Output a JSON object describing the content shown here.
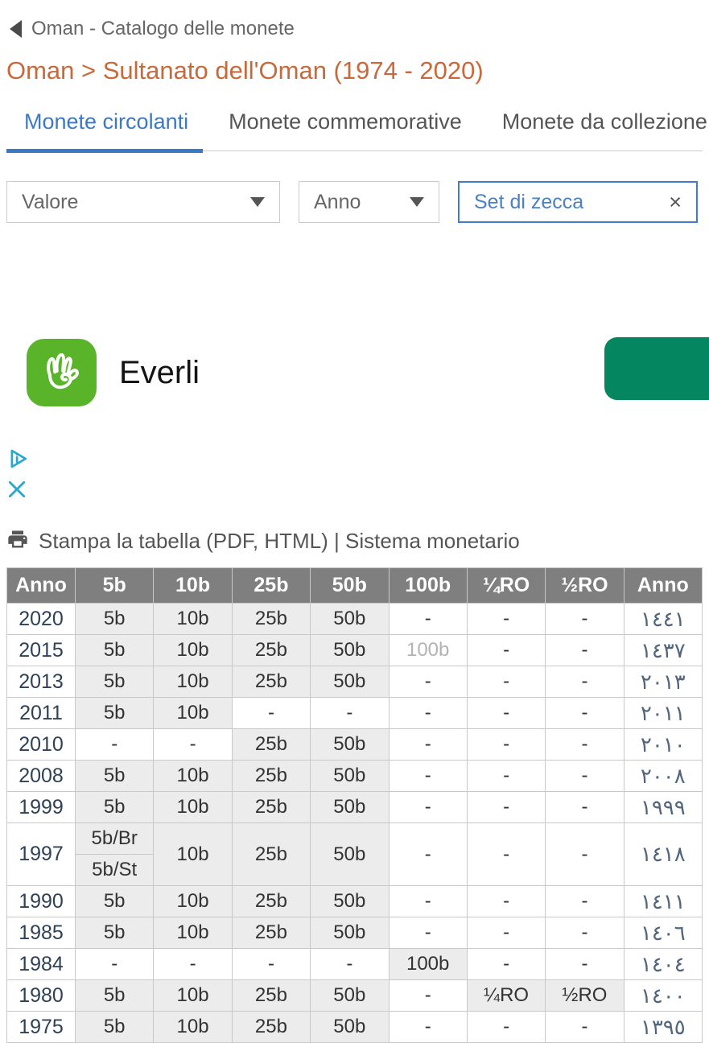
{
  "header": {
    "back_title": "Oman - Catalogo delle monete"
  },
  "breadcrumb": {
    "text": "Oman > Sultanato dell'Oman (1974 - 2020)"
  },
  "tabs": [
    {
      "label": "Monete circolanti",
      "active": true
    },
    {
      "label": "Monete commemorative",
      "active": false
    },
    {
      "label": "Monete da collezione",
      "active": false
    }
  ],
  "filters": [
    {
      "label": "Valore",
      "control": "dropdown"
    },
    {
      "label": "Anno",
      "control": "dropdown"
    },
    {
      "label": "Set di zecca",
      "control": "clear",
      "clear_glyph": "×"
    }
  ],
  "ad": {
    "advertiser": "Everli",
    "icon": "everli-hand-icon",
    "badges": {
      "adchoices": "adchoices-icon",
      "close": "close-icon"
    }
  },
  "toolbar": {
    "print_line": "Stampa la tabella (PDF, HTML) | Sistema monetario"
  },
  "table": {
    "headers": [
      "Anno",
      "5b",
      "10b",
      "25b",
      "50b",
      "100b",
      "¼RO",
      "½RO",
      "Anno"
    ],
    "rows": [
      {
        "year": "2020",
        "cells": [
          {
            "t": "5b",
            "f": 1
          },
          {
            "t": "10b",
            "f": 1
          },
          {
            "t": "25b",
            "f": 1
          },
          {
            "t": "50b",
            "f": 1
          },
          {
            "t": "-"
          },
          {
            "t": "-"
          },
          {
            "t": "-"
          }
        ],
        "hijri": "١٤٤١"
      },
      {
        "year": "2015",
        "cells": [
          {
            "t": "5b",
            "f": 1
          },
          {
            "t": "10b",
            "f": 1
          },
          {
            "t": "25b",
            "f": 1
          },
          {
            "t": "50b",
            "f": 1
          },
          {
            "t": "100b",
            "m": 1
          },
          {
            "t": "-"
          },
          {
            "t": "-"
          }
        ],
        "hijri": "١٤٣٧"
      },
      {
        "year": "2013",
        "cells": [
          {
            "t": "5b",
            "f": 1
          },
          {
            "t": "10b",
            "f": 1
          },
          {
            "t": "25b",
            "f": 1
          },
          {
            "t": "50b",
            "f": 1
          },
          {
            "t": "-"
          },
          {
            "t": "-"
          },
          {
            "t": "-"
          }
        ],
        "hijri": "٢٠١٣"
      },
      {
        "year": "2011",
        "cells": [
          {
            "t": "5b",
            "f": 1
          },
          {
            "t": "10b",
            "f": 1
          },
          {
            "t": "-"
          },
          {
            "t": "-"
          },
          {
            "t": "-"
          },
          {
            "t": "-"
          },
          {
            "t": "-"
          }
        ],
        "hijri": "٢٠١١"
      },
      {
        "year": "2010",
        "cells": [
          {
            "t": "-"
          },
          {
            "t": "-"
          },
          {
            "t": "25b",
            "f": 1
          },
          {
            "t": "50b",
            "f": 1
          },
          {
            "t": "-"
          },
          {
            "t": "-"
          },
          {
            "t": "-"
          }
        ],
        "hijri": "٢٠١٠"
      },
      {
        "year": "2008",
        "cells": [
          {
            "t": "5b",
            "f": 1
          },
          {
            "t": "10b",
            "f": 1
          },
          {
            "t": "25b",
            "f": 1
          },
          {
            "t": "50b",
            "f": 1
          },
          {
            "t": "-"
          },
          {
            "t": "-"
          },
          {
            "t": "-"
          }
        ],
        "hijri": "٢٠٠٨"
      },
      {
        "year": "1999",
        "cells": [
          {
            "t": "5b",
            "f": 1
          },
          {
            "t": "10b",
            "f": 1
          },
          {
            "t": "25b",
            "f": 1
          },
          {
            "t": "50b",
            "f": 1
          },
          {
            "t": "-"
          },
          {
            "t": "-"
          },
          {
            "t": "-"
          }
        ],
        "hijri": "١٩٩٩"
      },
      {
        "year": "1997",
        "split": {
          "top": "5b/Br",
          "bottom": "5b/St"
        },
        "cells": [
          {
            "t": "10b",
            "f": 1
          },
          {
            "t": "25b",
            "f": 1
          },
          {
            "t": "50b",
            "f": 1
          },
          {
            "t": "-"
          },
          {
            "t": "-"
          },
          {
            "t": "-"
          }
        ],
        "hijri": "١٤١٨"
      },
      {
        "year": "1990",
        "cells": [
          {
            "t": "5b",
            "f": 1
          },
          {
            "t": "10b",
            "f": 1
          },
          {
            "t": "25b",
            "f": 1
          },
          {
            "t": "50b",
            "f": 1
          },
          {
            "t": "-"
          },
          {
            "t": "-"
          },
          {
            "t": "-"
          }
        ],
        "hijri": "١٤١١"
      },
      {
        "year": "1985",
        "cells": [
          {
            "t": "5b",
            "f": 1
          },
          {
            "t": "10b",
            "f": 1
          },
          {
            "t": "25b",
            "f": 1
          },
          {
            "t": "50b",
            "f": 1
          },
          {
            "t": "-"
          },
          {
            "t": "-"
          },
          {
            "t": "-"
          }
        ],
        "hijri": "١٤٠٦"
      },
      {
        "year": "1984",
        "cells": [
          {
            "t": "-"
          },
          {
            "t": "-"
          },
          {
            "t": "-"
          },
          {
            "t": "-"
          },
          {
            "t": "100b",
            "f": 1
          },
          {
            "t": "-"
          },
          {
            "t": "-"
          }
        ],
        "hijri": "١٤٠٤"
      },
      {
        "year": "1980",
        "cells": [
          {
            "t": "5b",
            "f": 1
          },
          {
            "t": "10b",
            "f": 1
          },
          {
            "t": "25b",
            "f": 1
          },
          {
            "t": "50b",
            "f": 1
          },
          {
            "t": "-"
          },
          {
            "t": "¼RO",
            "f": 1
          },
          {
            "t": "½RO",
            "f": 1
          }
        ],
        "hijri": "١٤٠٠"
      },
      {
        "year": "1975",
        "cells": [
          {
            "t": "5b",
            "f": 1
          },
          {
            "t": "10b",
            "f": 1
          },
          {
            "t": "25b",
            "f": 1
          },
          {
            "t": "50b",
            "f": 1
          },
          {
            "t": "-"
          },
          {
            "t": "-"
          },
          {
            "t": "-"
          }
        ],
        "hijri": "١٣٩٥"
      }
    ]
  },
  "colors": {
    "breadcrumb_orange": "#c8693c",
    "tab_blue": "#3d79c2",
    "filter_selected_blue": "#3f7ec7",
    "everli_green": "#59b42a",
    "cta_green": "#048760",
    "adchoices_blue": "#29a8cd",
    "table_header_gray": "#7f7f7f",
    "cell_fill_gray": "#ececec"
  }
}
